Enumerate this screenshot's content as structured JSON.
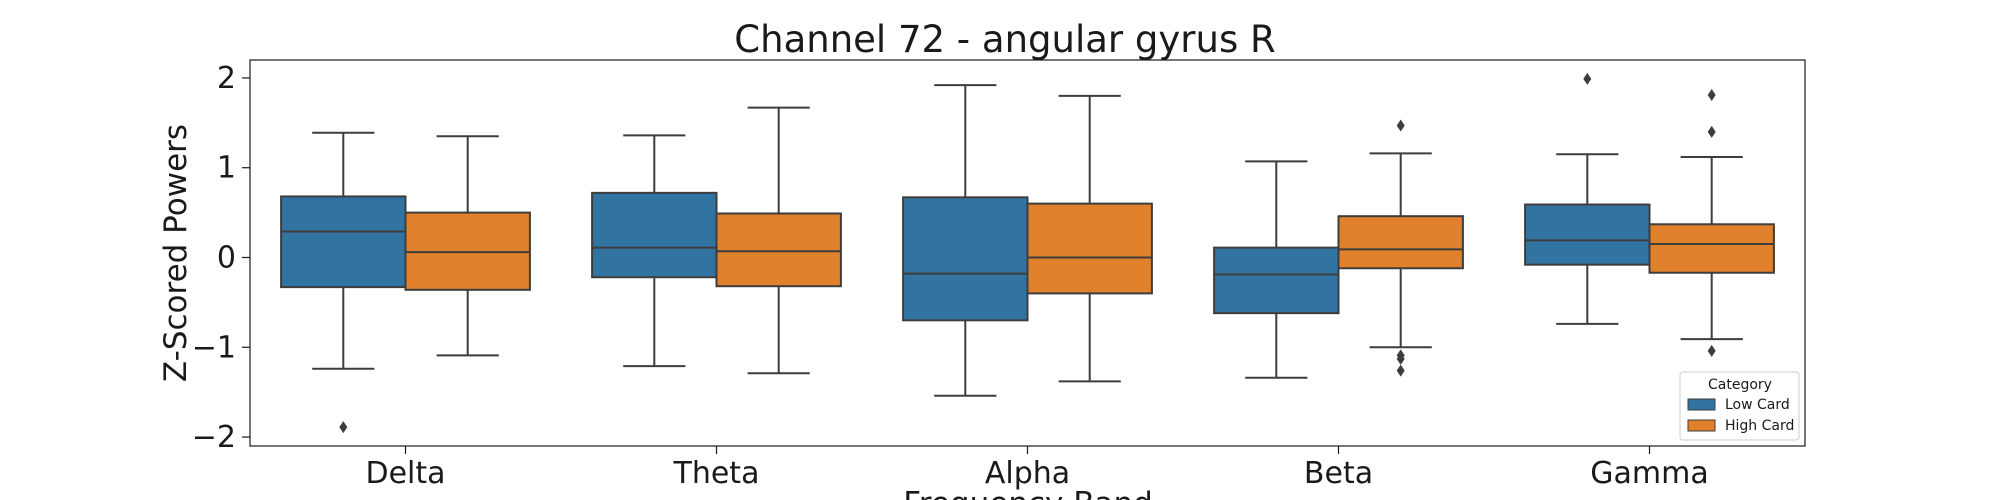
{
  "chart_data": {
    "type": "box",
    "title": "Channel 72 - angular gyrus R",
    "xlabel": "Frequency Band",
    "ylabel": "Z-Scored Powers",
    "ylim": [
      -2.1,
      2.2
    ],
    "yticks": [
      2,
      1,
      0,
      -1,
      -2
    ],
    "ytick_labels": [
      "2",
      "1",
      "0",
      "−1",
      "−2"
    ],
    "categories": [
      "Delta",
      "Theta",
      "Alpha",
      "Beta",
      "Gamma"
    ],
    "legend": {
      "title": "Category",
      "position": "lower-right"
    },
    "series": [
      {
        "name": "Low Card",
        "color": "#3274a1",
        "boxes": [
          {
            "q1": -0.33,
            "median": 0.29,
            "q3": 0.68,
            "whisker_low": -1.24,
            "whisker_high": 1.39,
            "outliers": [
              -1.89
            ]
          },
          {
            "q1": -0.22,
            "median": 0.11,
            "q3": 0.72,
            "whisker_low": -1.21,
            "whisker_high": 1.36,
            "outliers": []
          },
          {
            "q1": -0.7,
            "median": -0.18,
            "q3": 0.67,
            "whisker_low": -1.54,
            "whisker_high": 1.92,
            "outliers": []
          },
          {
            "q1": -0.62,
            "median": -0.19,
            "q3": 0.11,
            "whisker_low": -1.34,
            "whisker_high": 1.07,
            "outliers": []
          },
          {
            "q1": -0.08,
            "median": 0.19,
            "q3": 0.59,
            "whisker_low": -0.74,
            "whisker_high": 1.15,
            "outliers": [
              1.99
            ]
          }
        ]
      },
      {
        "name": "High Card",
        "color": "#e1812c",
        "boxes": [
          {
            "q1": -0.36,
            "median": 0.06,
            "q3": 0.5,
            "whisker_low": -1.09,
            "whisker_high": 1.35,
            "outliers": []
          },
          {
            "q1": -0.32,
            "median": 0.07,
            "q3": 0.49,
            "whisker_low": -1.29,
            "whisker_high": 1.67,
            "outliers": []
          },
          {
            "q1": -0.4,
            "median": 0.0,
            "q3": 0.6,
            "whisker_low": -1.38,
            "whisker_high": 1.8,
            "outliers": []
          },
          {
            "q1": -0.12,
            "median": 0.09,
            "q3": 0.46,
            "whisker_low": -1.0,
            "whisker_high": 1.16,
            "outliers": [
              1.47,
              -1.09,
              -1.13,
              -1.26
            ]
          },
          {
            "q1": -0.17,
            "median": 0.15,
            "q3": 0.37,
            "whisker_low": -0.91,
            "whisker_high": 1.12,
            "outliers": [
              1.81,
              1.4,
              -1.04
            ]
          }
        ]
      }
    ]
  }
}
